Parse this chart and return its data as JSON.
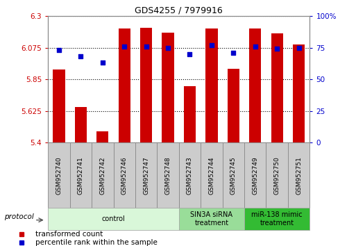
{
  "title": "GDS4255 / 7979916",
  "samples": [
    "GSM952740",
    "GSM952741",
    "GSM952742",
    "GSM952746",
    "GSM952747",
    "GSM952748",
    "GSM952743",
    "GSM952744",
    "GSM952745",
    "GSM952749",
    "GSM952750",
    "GSM952751"
  ],
  "bar_values": [
    5.92,
    5.655,
    5.48,
    6.21,
    6.215,
    6.18,
    5.8,
    6.21,
    5.925,
    6.21,
    6.175,
    6.1
  ],
  "dot_values": [
    73,
    68,
    63,
    76,
    76,
    75,
    70,
    77,
    71,
    76,
    74,
    75
  ],
  "bar_color": "#CC0000",
  "dot_color": "#0000CC",
  "ylim_left": [
    5.4,
    6.3
  ],
  "ylim_right": [
    0,
    100
  ],
  "yticks_left": [
    5.4,
    5.625,
    5.85,
    6.075,
    6.3
  ],
  "yticks_right": [
    0,
    25,
    50,
    75,
    100
  ],
  "ytick_labels_left": [
    "5.4",
    "5.625",
    "5.85",
    "6.075",
    "6.3"
  ],
  "ytick_labels_right": [
    "0",
    "25",
    "50",
    "75",
    "100%"
  ],
  "groups": [
    {
      "label": "control",
      "start": 0,
      "end": 6,
      "color": "#d9f7d9",
      "edge_color": "#aaaaaa"
    },
    {
      "label": "SIN3A siRNA\ntreatment",
      "start": 6,
      "end": 9,
      "color": "#99dd99",
      "edge_color": "#aaaaaa"
    },
    {
      "label": "miR-138 mimic\ntreatment",
      "start": 9,
      "end": 12,
      "color": "#33bb33",
      "edge_color": "#aaaaaa"
    }
  ],
  "legend_items": [
    {
      "label": "transformed count",
      "color": "#CC0000"
    },
    {
      "label": "percentile rank within the sample",
      "color": "#0000CC"
    }
  ],
  "protocol_label": "protocol",
  "bar_width": 0.55,
  "bar_bottom": 5.4,
  "xtick_box_color": "#cccccc",
  "xtick_box_edge": "#888888"
}
